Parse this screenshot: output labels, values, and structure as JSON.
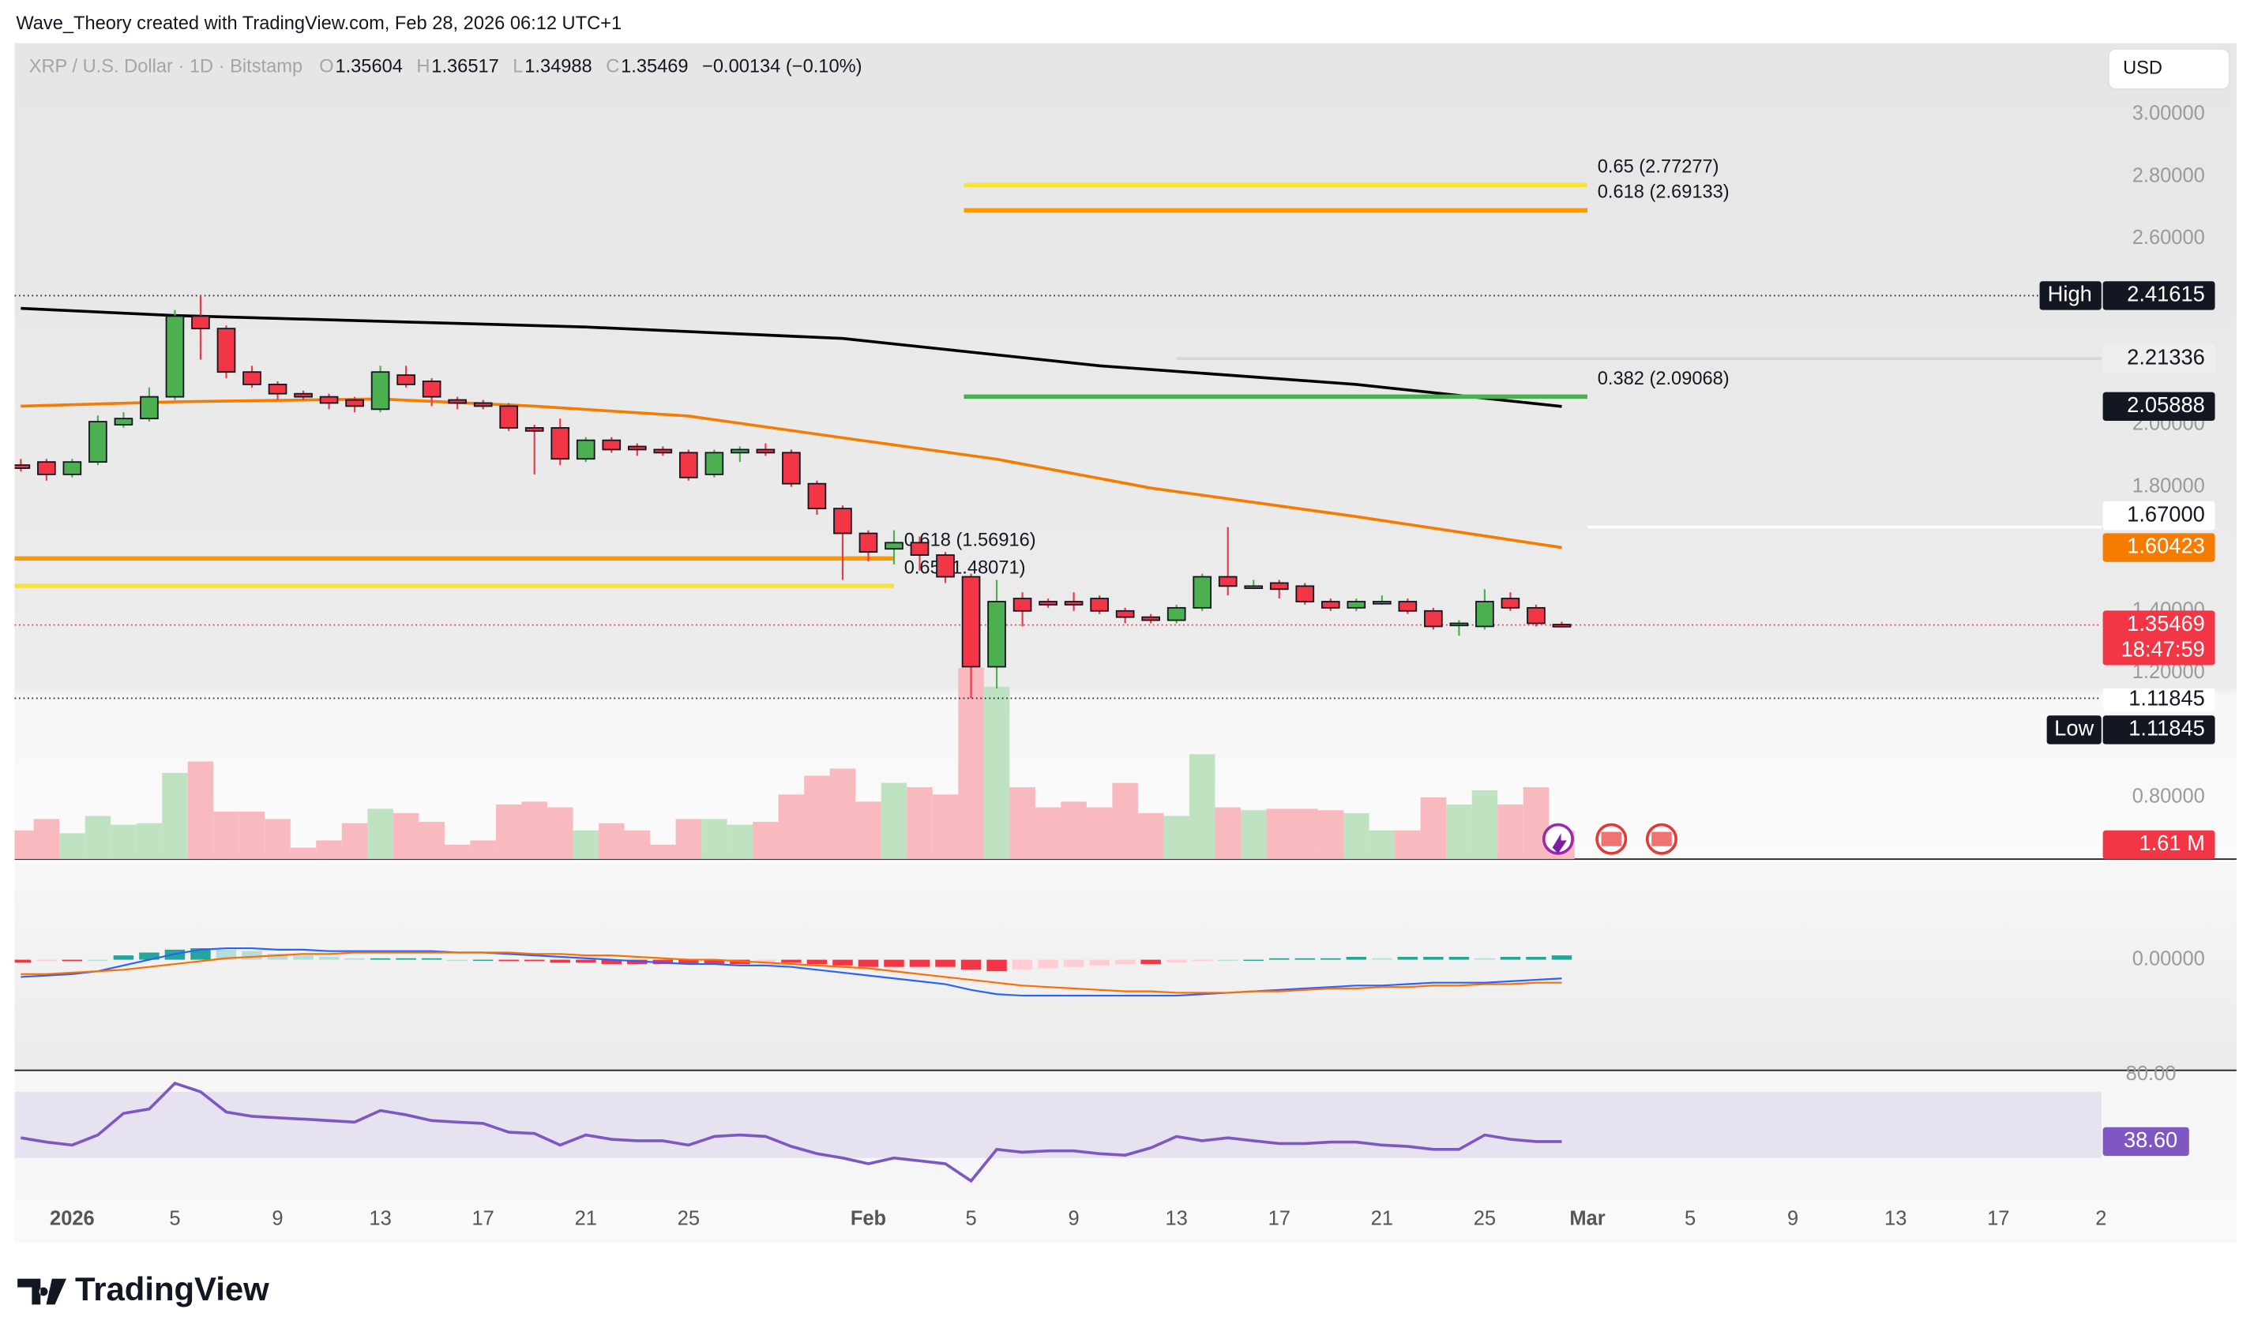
{
  "header": {
    "attribution": "Wave_Theory created with TradingView.com, Feb 28, 2026 06:12 UTC+1",
    "symbol": "XRP / U.S. Dollar · 1D · Bitstamp",
    "ohlc_labels": [
      "O",
      "H",
      "L",
      "C"
    ],
    "change": "−0.00134 (−0.10%)",
    "currency": "USD",
    "logo": "TradingView"
  },
  "chart_data": [
    {
      "type": "candlestick",
      "x": [
        "2025-12-30",
        "2025-12-31",
        "2026-01-01",
        "2026-01-02",
        "2026-01-03",
        "2026-01-04",
        "2026-01-05",
        "2026-01-06",
        "2026-01-07",
        "2026-01-08",
        "2026-01-09",
        "2026-01-10",
        "2026-01-11",
        "2026-01-12",
        "2026-01-13",
        "2026-01-14",
        "2026-01-15",
        "2026-01-16",
        "2026-01-17",
        "2026-01-18",
        "2026-01-19",
        "2026-01-20",
        "2026-01-21",
        "2026-01-22",
        "2026-01-23",
        "2026-01-24",
        "2026-01-25",
        "2026-01-26",
        "2026-01-27",
        "2026-01-28",
        "2026-01-29",
        "2026-01-30",
        "2026-01-31",
        "2026-02-01",
        "2026-02-02",
        "2026-02-03",
        "2026-02-04",
        "2026-02-05",
        "2026-02-06",
        "2026-02-07",
        "2026-02-08",
        "2026-02-09",
        "2026-02-10",
        "2026-02-11",
        "2026-02-12",
        "2026-02-13",
        "2026-02-14",
        "2026-02-15",
        "2026-02-16",
        "2026-02-17",
        "2026-02-18",
        "2026-02-19",
        "2026-02-20",
        "2026-02-21",
        "2026-02-22",
        "2026-02-23",
        "2026-02-24",
        "2026-02-25",
        "2026-02-26",
        "2026-02-27",
        "2026-02-28"
      ],
      "open": [
        1.87,
        1.88,
        1.84,
        1.88,
        2.0,
        2.02,
        2.09,
        2.35,
        2.31,
        2.17,
        2.13,
        2.1,
        2.09,
        2.08,
        2.05,
        2.16,
        2.14,
        2.08,
        2.07,
        2.06,
        1.99,
        1.99,
        1.89,
        1.95,
        1.93,
        1.92,
        1.91,
        1.84,
        1.91,
        1.92,
        1.91,
        1.81,
        1.73,
        1.65,
        1.6,
        1.62,
        1.58,
        1.51,
        1.22,
        1.44,
        1.43,
        1.43,
        1.44,
        1.4,
        1.38,
        1.37,
        1.41,
        1.51,
        1.48,
        1.49,
        1.48,
        1.43,
        1.41,
        1.43,
        1.43,
        1.4,
        1.36,
        1.35,
        1.44,
        1.41,
        1.35604
      ],
      "high": [
        1.89,
        1.89,
        1.89,
        2.03,
        2.04,
        2.12,
        2.37,
        2.41615,
        2.32,
        2.19,
        2.14,
        2.11,
        2.1,
        2.09,
        2.19,
        2.19,
        2.15,
        2.09,
        2.08,
        2.07,
        2.0,
        2.02,
        1.96,
        1.96,
        1.94,
        1.93,
        1.92,
        1.92,
        1.93,
        1.94,
        1.92,
        1.82,
        1.74,
        1.66,
        1.66,
        1.64,
        1.59,
        1.52,
        1.5,
        1.46,
        1.44,
        1.46,
        1.45,
        1.41,
        1.39,
        1.42,
        1.52,
        1.67,
        1.5,
        1.5,
        1.49,
        1.44,
        1.44,
        1.45,
        1.44,
        1.41,
        1.37,
        1.47,
        1.46,
        1.42,
        1.36517
      ],
      "low": [
        1.85,
        1.82,
        1.83,
        1.87,
        1.99,
        2.01,
        2.08,
        2.21,
        2.15,
        2.12,
        2.08,
        2.08,
        2.05,
        2.04,
        2.04,
        2.12,
        2.06,
        2.05,
        2.05,
        1.98,
        1.84,
        1.87,
        1.88,
        1.91,
        1.9,
        1.9,
        1.82,
        1.83,
        1.88,
        1.9,
        1.8,
        1.71,
        1.5,
        1.56,
        1.55,
        1.53,
        1.49,
        1.11845,
        1.15,
        1.35,
        1.41,
        1.4,
        1.39,
        1.36,
        1.36,
        1.36,
        1.4,
        1.45,
        1.47,
        1.44,
        1.42,
        1.4,
        1.4,
        1.42,
        1.39,
        1.34,
        1.32,
        1.34,
        1.4,
        1.35,
        1.34988
      ],
      "close": [
        1.86,
        1.84,
        1.88,
        2.01,
        2.02,
        2.09,
        2.35,
        2.31,
        2.17,
        2.13,
        2.1,
        2.09,
        2.07,
        2.06,
        2.17,
        2.13,
        2.09,
        2.07,
        2.06,
        1.99,
        1.98,
        1.89,
        1.95,
        1.92,
        1.92,
        1.91,
        1.83,
        1.91,
        1.92,
        1.91,
        1.81,
        1.73,
        1.65,
        1.59,
        1.62,
        1.58,
        1.51,
        1.22,
        1.43,
        1.4,
        1.42,
        1.42,
        1.4,
        1.38,
        1.37,
        1.41,
        1.51,
        1.48,
        1.48,
        1.47,
        1.43,
        1.41,
        1.43,
        1.43,
        1.4,
        1.35,
        1.36,
        1.43,
        1.41,
        1.36,
        1.35469
      ],
      "up_color": "#4caf50",
      "down_color": "#f23645",
      "ylim": [
        0.6,
        3.23
      ],
      "yticks": [
        {
          "value": 3.0,
          "label": "3.00000"
        },
        {
          "value": 2.8,
          "label": "2.80000"
        },
        {
          "value": 2.6,
          "label": "2.60000"
        },
        {
          "value": 2.0,
          "label": "2.00000"
        },
        {
          "value": 1.8,
          "label": "1.80000"
        },
        {
          "value": 1.4,
          "label": "1.40000"
        },
        {
          "value": 1.2,
          "label": "1.20000"
        },
        {
          "value": 0.8,
          "label": "0.80000"
        }
      ],
      "xticks": [
        {
          "value": "2026-01-01",
          "label": "2026"
        },
        {
          "value": "2026-01-05",
          "label": "5"
        },
        {
          "value": "2026-01-09",
          "label": "9"
        },
        {
          "value": "2026-01-13",
          "label": "13"
        },
        {
          "value": "2026-01-17",
          "label": "17"
        },
        {
          "value": "2026-01-21",
          "label": "21"
        },
        {
          "value": "2026-01-25",
          "label": "25"
        },
        {
          "value": "2026-02-01",
          "label": "Feb"
        },
        {
          "value": "2026-02-05",
          "label": "5"
        },
        {
          "value": "2026-02-09",
          "label": "9"
        },
        {
          "value": "2026-02-13",
          "label": "13"
        },
        {
          "value": "2026-02-17",
          "label": "17"
        },
        {
          "value": "2026-02-21",
          "label": "21"
        },
        {
          "value": "2026-02-25",
          "label": "25"
        },
        {
          "value": "2026-03-01",
          "label": "Mar"
        },
        {
          "value": "2026-03-05",
          "label": "5"
        },
        {
          "value": "2026-03-09",
          "label": "9"
        },
        {
          "value": "2026-03-13",
          "label": "13"
        },
        {
          "value": "2026-03-17",
          "label": "17"
        },
        {
          "value": "2026-03-21",
          "label": "2"
        }
      ],
      "lines": [
        {
          "color": "#000000",
          "x": [
            "2025-12-30",
            "2026-01-05",
            "2026-01-21",
            "2026-01-31",
            "2026-02-10",
            "2026-02-20",
            "2026-02-28"
          ],
          "values": [
            2.375,
            2.352,
            2.315,
            2.278,
            2.19,
            2.13,
            2.05888
          ]
        },
        {
          "color": "#f57c00",
          "x": [
            "2025-12-30",
            "2026-01-05",
            "2026-01-13",
            "2026-01-19",
            "2026-01-25",
            "2026-01-31",
            "2026-02-06",
            "2026-02-12",
            "2026-02-20",
            "2026-02-28"
          ],
          "values": [
            2.06,
            2.074,
            2.083,
            2.06,
            2.028,
            1.958,
            1.889,
            1.796,
            1.704,
            1.60423
          ]
        }
      ],
      "fib": [
        {
          "label": "0.65 (2.77277)",
          "value": 2.77277,
          "color": "#f5e23b",
          "from": "2026-02-05",
          "to": "2026-03-01"
        },
        {
          "label": "0.618 (2.69133)",
          "value": 2.69133,
          "color": "#ff9800",
          "from": "2026-02-05",
          "to": "2026-03-01"
        },
        {
          "label": "0.382 (2.09068)",
          "value": 2.09068,
          "color": "#4caf50",
          "from": "2026-02-05",
          "to": "2026-03-01"
        },
        {
          "label": "0.618 (1.56916)",
          "value": 1.56916,
          "color": "#ff9800",
          "from": "2025-12-30",
          "to": "2026-02-02"
        },
        {
          "label": "0.65 (1.48071)",
          "value": 1.48071,
          "color": "#f5e23b",
          "from": "2025-12-30",
          "to": "2026-02-02"
        }
      ],
      "levels": [
        {
          "value": 2.21336,
          "color": "#d6d6d6",
          "from": "2026-02-13"
        },
        {
          "value": 1.67,
          "label": "1.67000",
          "color": "#ffffff",
          "from": "2026-03-01"
        }
      ],
      "high_label": "High",
      "low_label": "Low",
      "countdown": "18:47:59"
    },
    {
      "type": "volume",
      "up_color": "#bfe3c1",
      "down_color": "#f8b9bf",
      "ylim": [
        0,
        45.7
      ],
      "values": [
        1.61,
        2.25,
        1.45,
        2.42,
        1.93,
        2.01,
        4.83,
        5.47,
        2.66,
        2.66,
        2.25,
        0.64,
        1.05,
        2.01,
        2.82,
        2.58,
        2.09,
        0.81,
        1.05,
        3.06,
        3.22,
        2.9,
        1.61,
        2.01,
        1.61,
        0.81,
        2.25,
        2.25,
        1.93,
        2.09,
        3.62,
        4.67,
        5.07,
        3.22,
        4.27,
        4.03,
        3.62,
        10.71,
        9.66,
        4.03,
        2.9,
        3.22,
        2.9,
        4.27,
        2.58,
        2.42,
        5.88,
        2.9,
        2.74,
        2.82,
        2.82,
        2.74,
        2.58,
        1.61,
        1.61,
        3.46,
        3.06,
        3.86,
        3.06,
        4.03,
        1.61
      ],
      "value_labels": [
        null,
        null,
        null,
        null,
        null,
        null,
        null,
        null,
        null,
        null,
        null,
        null,
        null,
        null,
        null,
        null,
        null,
        null,
        null,
        null,
        null,
        null,
        null,
        null,
        null,
        null,
        null,
        null,
        null,
        null,
        null,
        null,
        null,
        null,
        null,
        null,
        null,
        null,
        null,
        null,
        null,
        null,
        null,
        null,
        null,
        null,
        null,
        null,
        null,
        null,
        null,
        null,
        null,
        null,
        null,
        null,
        null,
        null,
        null,
        null,
        "1.61 M"
      ]
    },
    {
      "type": "macd",
      "ylim": [
        -0.616,
        0.544
      ],
      "yticks": [
        {
          "value": 0,
          "label": "0.00000"
        }
      ],
      "histogram": [
        -0.016,
        -0.008,
        -0.008,
        0,
        0.024,
        0.04,
        0.056,
        0.064,
        0.056,
        0.048,
        0.032,
        0.024,
        0.016,
        0.008,
        0.008,
        0.008,
        0.008,
        0,
        0,
        -0.008,
        -0.008,
        -0.016,
        -0.016,
        -0.024,
        -0.024,
        -0.024,
        -0.024,
        -0.024,
        -0.024,
        -0.016,
        -0.016,
        -0.024,
        -0.032,
        -0.04,
        -0.04,
        -0.04,
        -0.04,
        -0.056,
        -0.064,
        -0.056,
        -0.048,
        -0.04,
        -0.032,
        -0.024,
        -0.024,
        -0.016,
        -0.008,
        0,
        0,
        0.008,
        0.008,
        0.008,
        0.016,
        0.008,
        0.016,
        0.016,
        0.016,
        0.008,
        0.016,
        0.016,
        0.024
      ],
      "series": [
        {
          "color": "#2962ff",
          "values": [
            -0.096,
            -0.088,
            -0.08,
            -0.064,
            -0.032,
            0,
            0.032,
            0.056,
            0.064,
            0.064,
            0.056,
            0.056,
            0.048,
            0.048,
            0.048,
            0.048,
            0.048,
            0.04,
            0.04,
            0.032,
            0.024,
            0.016,
            0.008,
            0,
            -0.008,
            -0.016,
            -0.024,
            -0.024,
            -0.032,
            -0.032,
            -0.04,
            -0.056,
            -0.072,
            -0.088,
            -0.104,
            -0.12,
            -0.136,
            -0.168,
            -0.192,
            -0.2,
            -0.2,
            -0.2,
            -0.2,
            -0.2,
            -0.2,
            -0.2,
            -0.192,
            -0.184,
            -0.176,
            -0.168,
            -0.16,
            -0.152,
            -0.144,
            -0.144,
            -0.136,
            -0.128,
            -0.128,
            -0.128,
            -0.12,
            -0.112,
            -0.104
          ]
        },
        {
          "color": "#ff6d00",
          "values": [
            -0.08,
            -0.08,
            -0.072,
            -0.064,
            -0.056,
            -0.04,
            -0.024,
            -0.008,
            0.008,
            0.016,
            0.024,
            0.032,
            0.032,
            0.04,
            0.04,
            0.04,
            0.04,
            0.04,
            0.04,
            0.04,
            0.032,
            0.032,
            0.024,
            0.024,
            0.016,
            0.008,
            0,
            0,
            -0.008,
            -0.016,
            -0.024,
            -0.032,
            -0.04,
            -0.048,
            -0.064,
            -0.08,
            -0.096,
            -0.112,
            -0.128,
            -0.144,
            -0.152,
            -0.16,
            -0.168,
            -0.176,
            -0.176,
            -0.184,
            -0.184,
            -0.184,
            -0.176,
            -0.176,
            -0.168,
            -0.16,
            -0.16,
            -0.152,
            -0.152,
            -0.144,
            -0.144,
            -0.136,
            -0.136,
            -0.128,
            -0.128
          ]
        }
      ]
    },
    {
      "type": "rsi",
      "color": "#7e57c2",
      "ylim": [
        3.5,
        81.7
      ],
      "yticks": [
        {
          "value": 80,
          "label": "80.00"
        }
      ],
      "values": [
        40.9,
        38.3,
        36.5,
        42.6,
        55.7,
        58.3,
        73.9,
        68.7,
        56.5,
        53.9,
        53.0,
        52.2,
        51.3,
        50.4,
        57.4,
        54.8,
        51.3,
        50.4,
        49.6,
        44.3,
        43.5,
        36.5,
        42.6,
        40.0,
        39.1,
        39.1,
        36.5,
        41.7,
        42.6,
        41.7,
        35.7,
        31.3,
        28.7,
        25.2,
        28.7,
        27.0,
        25.2,
        14.8,
        33.9,
        32.2,
        33.0,
        33.0,
        31.3,
        30.4,
        34.8,
        41.7,
        39.1,
        40.9,
        39.1,
        37.4,
        37.4,
        38.3,
        38.3,
        36.5,
        35.7,
        33.9,
        33.9,
        42.6,
        40.0,
        38.6,
        38.6
      ],
      "value_labels": [
        null,
        null,
        null,
        null,
        null,
        null,
        null,
        null,
        null,
        null,
        null,
        null,
        null,
        null,
        null,
        null,
        null,
        null,
        null,
        null,
        null,
        null,
        null,
        null,
        null,
        null,
        null,
        null,
        null,
        null,
        null,
        null,
        null,
        null,
        null,
        null,
        null,
        null,
        null,
        null,
        null,
        null,
        null,
        null,
        null,
        null,
        null,
        null,
        null,
        null,
        null,
        null,
        null,
        null,
        null,
        null,
        null,
        null,
        null,
        null,
        "38.60"
      ]
    }
  ]
}
